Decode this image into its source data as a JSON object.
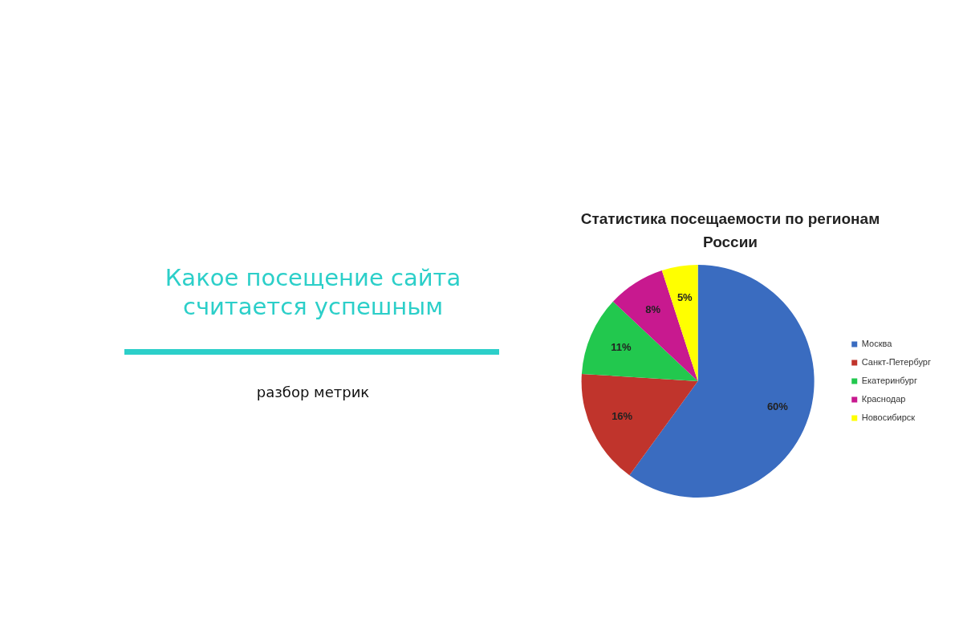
{
  "chart_data": {
    "type": "pie",
    "title": "Статистика посещаемости по регионам России",
    "annotations": [
      "Какое посещение сайта считается успешным",
      "разбор метрик"
    ],
    "categories": [
      "Москва",
      "Санкт-Петербург",
      "Екатеринбург",
      "Краснодар",
      "Новосибирск"
    ],
    "values": [
      60,
      16,
      11,
      8,
      5
    ],
    "colors": [
      "#3a6cc0",
      "#c0342c",
      "#22c84e",
      "#c8198f",
      "#ffff00"
    ],
    "value_labels": [
      "60%",
      "16%",
      "11%",
      "8%",
      "5%"
    ],
    "legend": "right"
  }
}
